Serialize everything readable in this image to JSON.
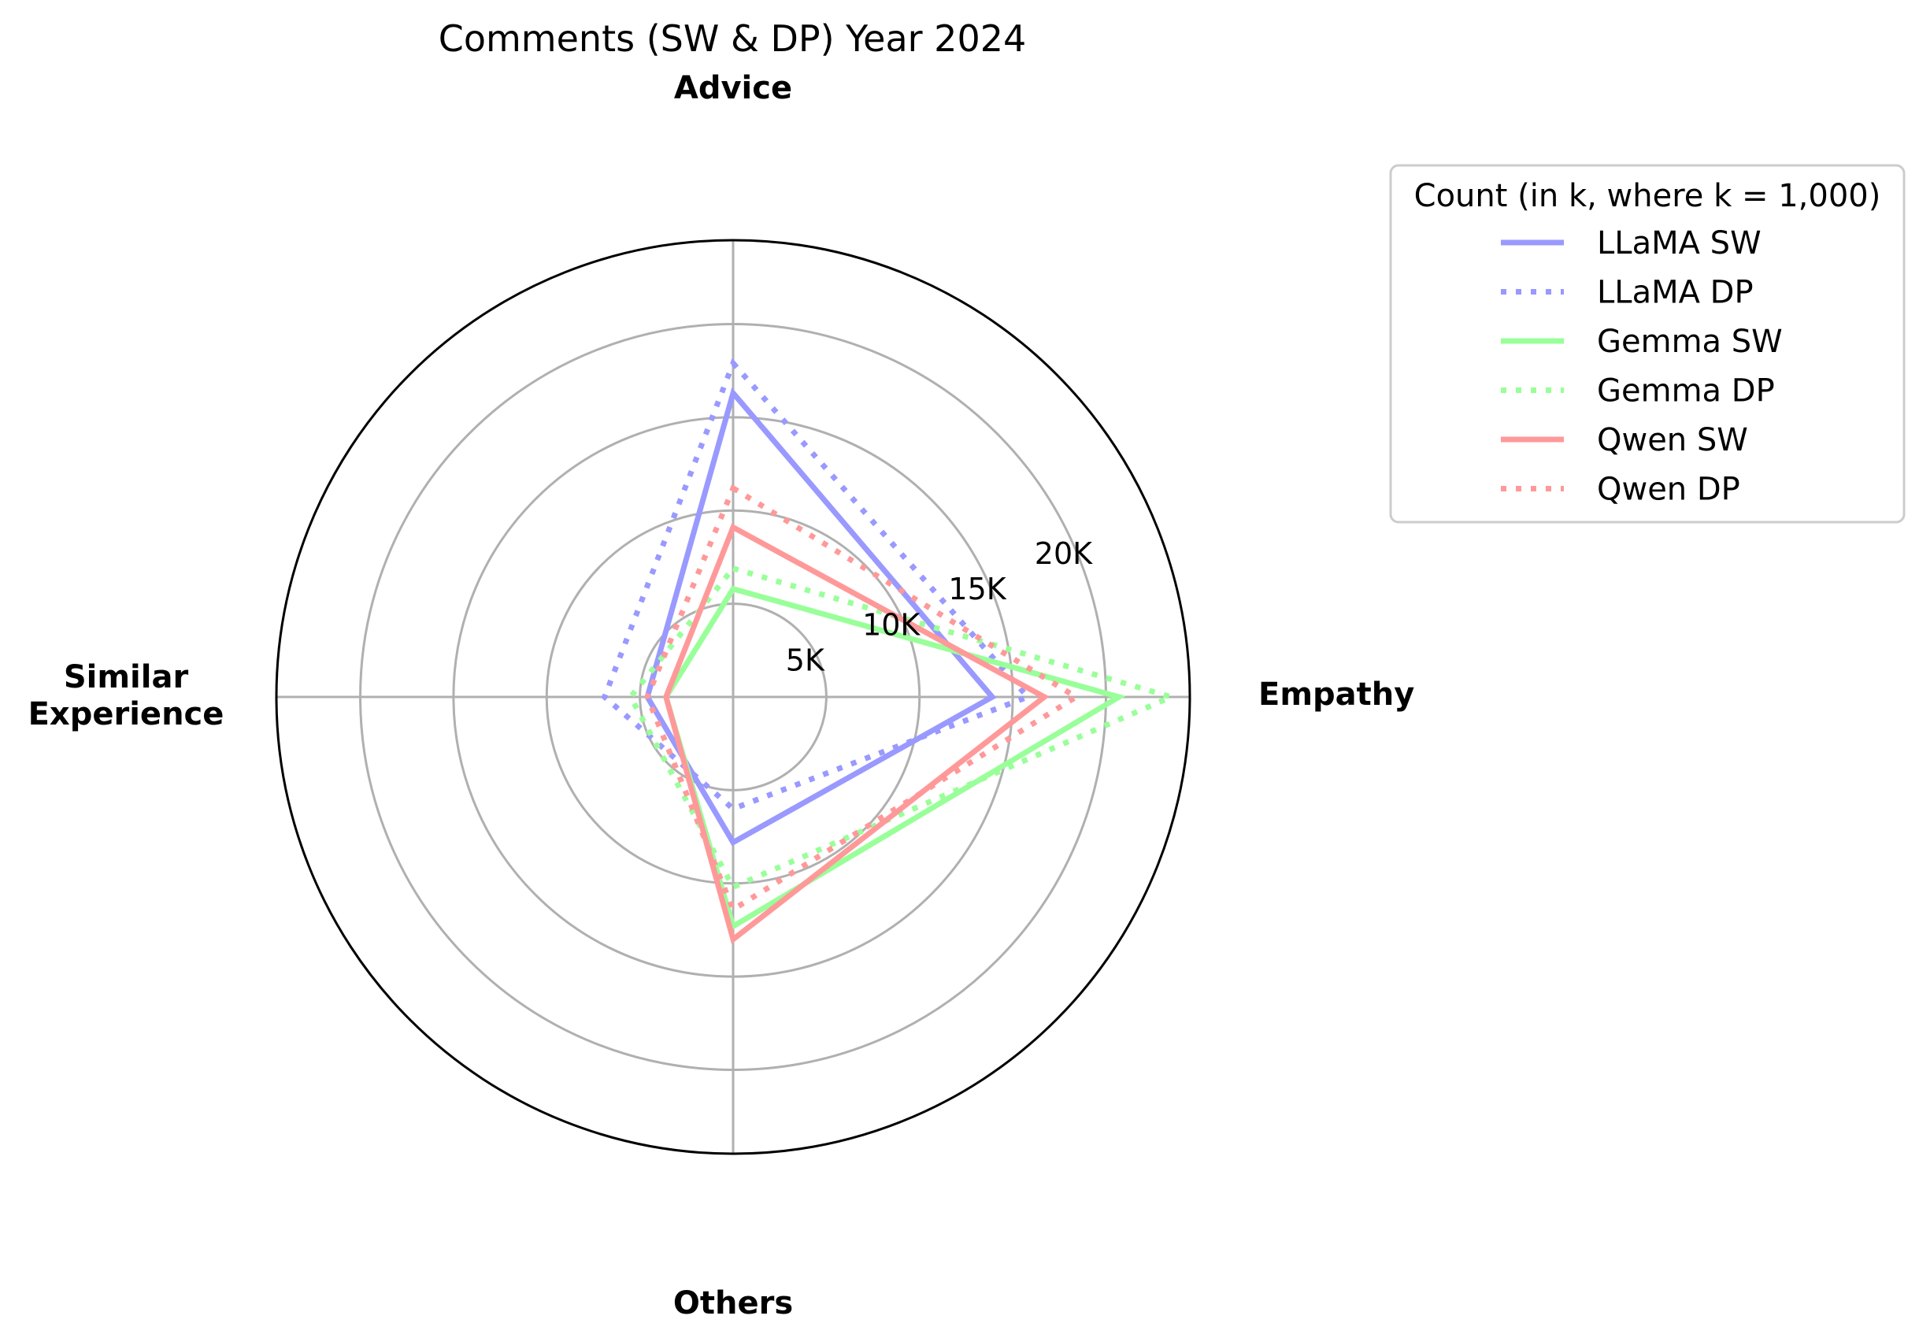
{
  "chart_data": {
    "type": "radar",
    "title": "Comments (SW & DP) Year 2024",
    "axes": [
      "Advice",
      "Empathy",
      "Others",
      "Similar\nExperience"
    ],
    "radial_ticks": [
      5,
      10,
      15,
      20
    ],
    "radial_tick_labels": [
      "5K",
      "10K",
      "15K",
      "20K"
    ],
    "rlim": [
      0,
      24.5
    ],
    "units": "thousands",
    "grid": true,
    "legend": {
      "title": "Count (in k, where k = 1,000)",
      "placement": "top-right"
    },
    "series": [
      {
        "name": "LLaMA SW",
        "values": [
          16.3,
          13.9,
          7.8,
          4.6
        ],
        "color": "#9999ff",
        "style": "solid"
      },
      {
        "name": "LLaMA DP",
        "values": [
          17.9,
          15.8,
          6.0,
          6.9
        ],
        "color": "#9999ff",
        "style": "dotted"
      },
      {
        "name": "Gemma SW",
        "values": [
          5.8,
          20.7,
          12.3,
          3.6
        ],
        "color": "#99ff99",
        "style": "solid"
      },
      {
        "name": "Gemma DP",
        "values": [
          6.9,
          23.5,
          10.2,
          5.5
        ],
        "color": "#99ff99",
        "style": "dotted"
      },
      {
        "name": "Qwen SW",
        "values": [
          9.1,
          16.7,
          13.0,
          3.6
        ],
        "color": "#ff9999",
        "style": "solid"
      },
      {
        "name": "Qwen DP",
        "values": [
          11.2,
          18.4,
          11.4,
          4.6
        ],
        "color": "#ff9999",
        "style": "dotted"
      }
    ]
  }
}
